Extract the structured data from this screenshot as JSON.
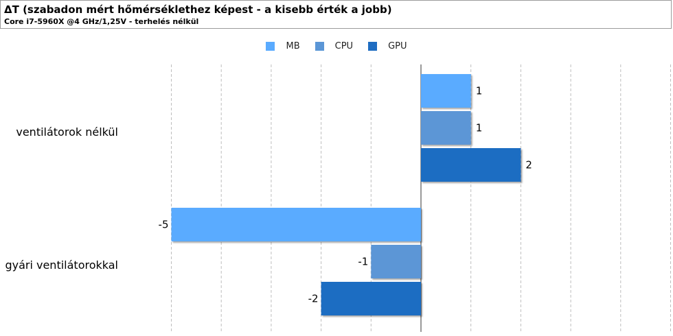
{
  "chart_data": {
    "type": "bar",
    "orientation": "horizontal",
    "title": "ΔT (szabadon mért hőmérséklethez képest - a kisebb érték a jobb)",
    "subtitle": "Core i7-5960X @4 GHz/1,25V - terhelés nélkül",
    "categories": [
      "ventilátorok nélkül",
      "gyári ventilátorokkal"
    ],
    "series": [
      {
        "name": "MB",
        "color": "#5aabff",
        "values": [
          1,
          -5
        ]
      },
      {
        "name": "CPU",
        "color": "#5b96d6",
        "values": [
          1,
          -1
        ]
      },
      {
        "name": "GPU",
        "color": "#1f6dc2",
        "values": [
          2,
          -2
        ]
      }
    ],
    "xlim": [
      -6.3,
      5
    ],
    "grid": true,
    "legend_position": "top-center"
  }
}
